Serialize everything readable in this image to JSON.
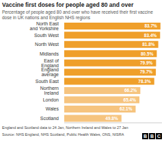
{
  "chart_data": {
    "type": "bar",
    "orientation": "horizontal",
    "title": "Vaccine first doses for people aged 80 and over",
    "subtitle": "Percentage of people aged 80 and over who have received their first vaccine dose in UK nations and English NHS regions",
    "categories": [
      "North East and Yorkshire",
      "South West",
      "North West",
      "Midlands",
      "East of England",
      "England average",
      "South East",
      "Northern Ireland",
      "London",
      "Wales",
      "Scotland"
    ],
    "values": [
      83.7,
      83.4,
      81.8,
      80.5,
      79.9,
      79.7,
      78.3,
      66.2,
      65.4,
      62.1,
      49.8
    ],
    "value_labels": [
      "83.7%",
      "83.4%",
      "81.8%",
      "80.5%",
      "79.9%",
      "79.7%",
      "78.3%",
      "66.2%",
      "65.4%",
      "62.1%",
      "49.8%"
    ],
    "colors": [
      "#ef9f2a",
      "#ef9f2a",
      "#ef9f2a",
      "#ef9f2a",
      "#ef9f2a",
      "#ef9f2a",
      "#ef9f2a",
      "#f6c47f",
      "#f6c47f",
      "#f6c47f",
      "#f6c47f"
    ],
    "xlim": [
      0,
      85
    ],
    "tick_labels": false,
    "data_labels": true,
    "grid": false,
    "note": "England and Scotland data to 24 Jan, Northern Ireland and Wales to 27 Jan",
    "source": "Source: NHS England, NHS Scotland, Public Health Wales, ONS, NISRA",
    "logo": "BBC"
  }
}
